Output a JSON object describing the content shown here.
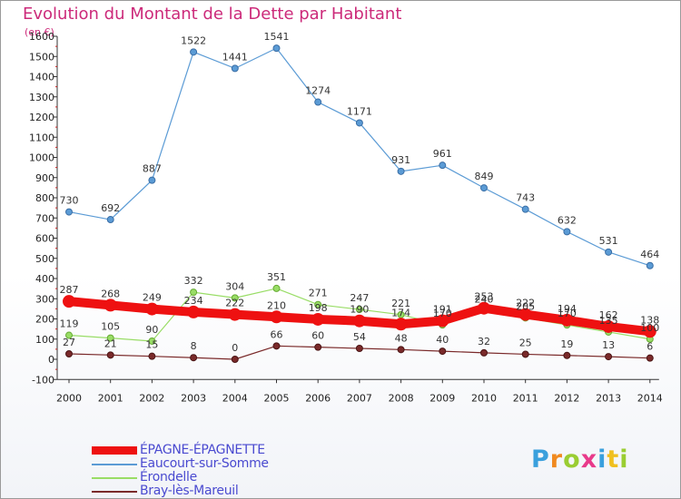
{
  "title": "Evolution du Montant de la Dette par Habitant",
  "unit_label": "(en €)",
  "logo": "Proxiti",
  "chart_data": {
    "type": "line",
    "title": "Evolution du Montant de la Dette par Habitant",
    "ylabel": "(en €)",
    "xlabel": "",
    "x": [
      "2000",
      "2001",
      "2002",
      "2003",
      "2004",
      "2005",
      "2006",
      "2007",
      "2008",
      "2009",
      "2010",
      "2011",
      "2012",
      "2013",
      "2014"
    ],
    "ylim": [
      -100,
      1600
    ],
    "yticks": [
      -100,
      0,
      100,
      200,
      300,
      400,
      500,
      600,
      700,
      800,
      900,
      1000,
      1100,
      1200,
      1300,
      1400,
      1500,
      1600
    ],
    "grid": false,
    "legend": "bottom-left",
    "series": [
      {
        "name": "ÉPAGNE-ÉPAGNETTE",
        "color": "#ee1111",
        "values": [
          287,
          268,
          249,
          234,
          222,
          210,
          198,
          190,
          174,
          191,
          253,
          222,
          194,
          162,
          138
        ]
      },
      {
        "name": "Eaucourt-sur-Somme",
        "color": "#5b9bd5",
        "values": [
          730,
          692,
          887,
          1522,
          1441,
          1541,
          1274,
          1171,
          931,
          961,
          849,
          743,
          632,
          531,
          464
        ]
      },
      {
        "name": "Érondelle",
        "color": "#99dd66",
        "values": [
          119,
          105,
          90,
          332,
          304,
          351,
          271,
          247,
          221,
          170,
          240,
          205,
          170,
          135,
          100
        ]
      },
      {
        "name": "Bray-lès-Mareuil",
        "color": "#7a2a2a",
        "values": [
          27,
          21,
          15,
          8,
          0,
          66,
          60,
          54,
          48,
          40,
          32,
          25,
          19,
          13,
          6
        ]
      }
    ]
  }
}
